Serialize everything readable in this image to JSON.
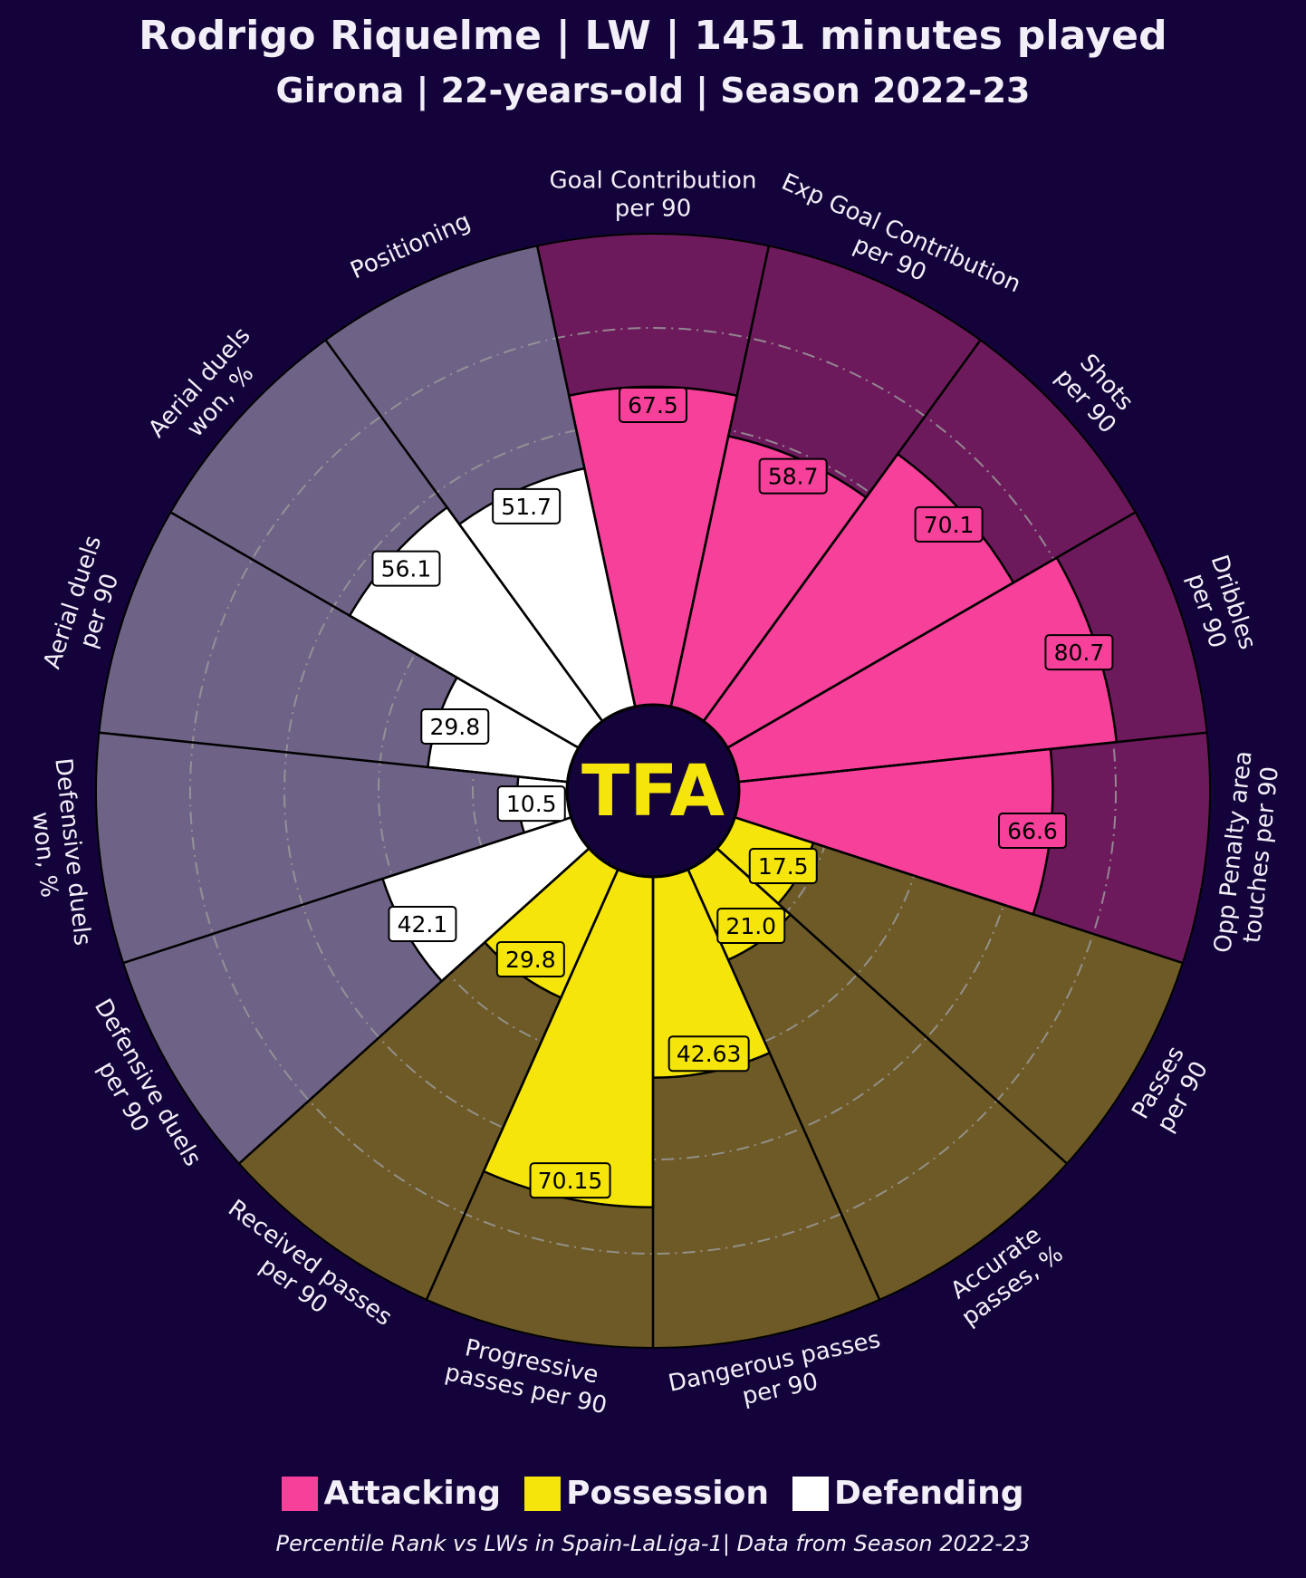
{
  "header": {
    "title": "Rodrigo Riquelme | LW | 1451 minutes played",
    "subtitle": "Girona | 22-years-old | Season 2022-23"
  },
  "logo": {
    "text": "TFA"
  },
  "legend": [
    {
      "label": "Attacking",
      "color": "#f6409a"
    },
    {
      "label": "Possession",
      "color": "#f5e50a"
    },
    {
      "label": "Defending",
      "color": "#ffffff"
    }
  ],
  "footer": {
    "text": "Percentile Rank vs LWs in Spain-LaLiga-1| Data from Season 2022-23"
  },
  "colors": {
    "background": "#14033a",
    "attacking_bg": "#6d1a5c",
    "possession_bg": "#6e5a27",
    "defending_bg": "#6f6287",
    "grid": "#9a9a9a",
    "logo_text": "#f5e50a"
  },
  "chart_data": {
    "type": "pizza",
    "range": [
      0,
      100
    ],
    "grid_rings": [
      20,
      40,
      60,
      80
    ],
    "slices": [
      {
        "label": [
          "Goal Contribution",
          "per 90"
        ],
        "value": 67.5,
        "value_label": "67.5",
        "group": "Attacking"
      },
      {
        "label": [
          "Exp Goal Contribution",
          "per 90"
        ],
        "value": 58.7,
        "value_label": "58.7",
        "group": "Attacking"
      },
      {
        "label": [
          "Shots",
          "per 90"
        ],
        "value": 70.1,
        "value_label": "70.1",
        "group": "Attacking"
      },
      {
        "label": [
          "Dribbles",
          "per 90"
        ],
        "value": 80.7,
        "value_label": "80.7",
        "group": "Attacking"
      },
      {
        "label": [
          "Opp Penalty area",
          "touches per 90"
        ],
        "value": 66.6,
        "value_label": "66.6",
        "group": "Attacking"
      },
      {
        "label": [
          "Passes",
          "per 90"
        ],
        "value": 17.5,
        "value_label": "17.5",
        "group": "Possession"
      },
      {
        "label": [
          "Accurate",
          "passes, %"
        ],
        "value": 21.0,
        "value_label": "21.0",
        "group": "Possession"
      },
      {
        "label": [
          "Dangerous passes",
          "per 90"
        ],
        "value": 42.63,
        "value_label": "42.63",
        "group": "Possession"
      },
      {
        "label": [
          "Progressive",
          "passes per 90"
        ],
        "value": 70.15,
        "value_label": "70.15",
        "group": "Possession"
      },
      {
        "label": [
          "Received passes",
          "per 90"
        ],
        "value": 29.8,
        "value_label": "29.8",
        "group": "Possession"
      },
      {
        "label": [
          "Defensive duels",
          "per 90"
        ],
        "value": 42.1,
        "value_label": "42.1",
        "group": "Defending"
      },
      {
        "label": [
          "Defensive duels",
          "won, %"
        ],
        "value": 10.5,
        "value_label": "10.5",
        "group": "Defending"
      },
      {
        "label": [
          "Aerial duels",
          "per 90"
        ],
        "value": 29.8,
        "value_label": "29.8",
        "group": "Defending"
      },
      {
        "label": [
          "Aerial duels",
          "won, %"
        ],
        "value": 56.1,
        "value_label": "56.1",
        "group": "Defending"
      },
      {
        "label": [
          "Positioning"
        ],
        "value": 51.7,
        "value_label": "51.7",
        "group": "Defending"
      }
    ]
  }
}
